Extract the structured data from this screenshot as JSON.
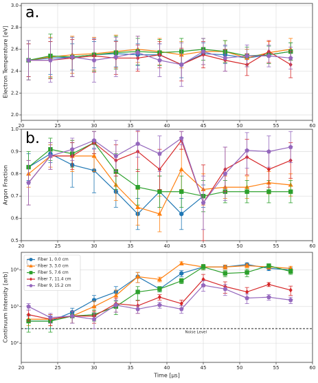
{
  "chart_data": [
    {
      "type": "line",
      "annotation": "a.",
      "ylabel": "Electron Temperature [eV]",
      "xlim": [
        20,
        60
      ],
      "xticks": [
        20,
        25,
        30,
        35,
        40,
        45,
        50,
        55,
        60
      ],
      "ylim": [
        1.95,
        3.02
      ],
      "yticks": [
        {
          "value": 2,
          "label": "2.0"
        },
        2.2,
        2.4,
        2.6,
        2.8,
        {
          "value": 3,
          "label": "3.0"
        }
      ],
      "grid": true,
      "log": false,
      "x": [
        21,
        24,
        27,
        30,
        33,
        36,
        39,
        42,
        45,
        48,
        51,
        54,
        57
      ],
      "series": [
        {
          "color": "#1f77b4",
          "marker": "circle",
          "values": [
            2.5,
            2.52,
            2.53,
            2.55,
            2.56,
            2.55,
            2.55,
            2.46,
            2.56,
            2.55,
            2.52,
            2.55,
            2.58
          ],
          "errors": [
            0.15,
            0.15,
            0.12,
            0.12,
            0.12,
            0.1,
            0.1,
            0.12,
            0.1,
            0.08,
            0.08,
            0.08,
            0.08
          ]
        },
        {
          "color": "#ff7f0e",
          "marker": "triangle",
          "values": [
            2.5,
            2.53,
            2.55,
            2.56,
            2.58,
            2.6,
            2.58,
            2.55,
            2.58,
            2.58,
            2.52,
            2.57,
            2.6
          ],
          "errors": [
            0.18,
            0.18,
            0.17,
            0.15,
            0.15,
            0.12,
            0.12,
            0.12,
            0.12,
            0.1,
            0.08,
            0.1,
            0.1
          ]
        },
        {
          "color": "#2ca02c",
          "marker": "square",
          "values": [
            2.5,
            2.54,
            2.53,
            2.55,
            2.57,
            2.58,
            2.57,
            2.58,
            2.6,
            2.58,
            2.54,
            2.55,
            2.58
          ],
          "errors": [
            0.18,
            0.2,
            0.18,
            0.15,
            0.15,
            0.12,
            0.12,
            0.12,
            0.1,
            0.1,
            0.08,
            0.08,
            0.08
          ]
        },
        {
          "color": "#d62728",
          "marker": "diamond",
          "values": [
            2.5,
            2.5,
            2.52,
            2.54,
            2.52,
            2.52,
            2.55,
            2.46,
            2.55,
            2.5,
            2.46,
            2.58,
            2.46
          ],
          "errors": [
            0.15,
            0.17,
            0.17,
            0.15,
            0.15,
            0.12,
            0.12,
            0.15,
            0.12,
            0.1,
            0.1,
            0.1,
            0.12
          ]
        },
        {
          "color": "#9467bd",
          "marker": "pentagon",
          "values": [
            2.5,
            2.5,
            2.53,
            2.5,
            2.53,
            2.57,
            2.5,
            2.46,
            2.58,
            2.52,
            2.54,
            2.54,
            2.52
          ],
          "errors": [
            0.18,
            0.2,
            0.18,
            0.2,
            0.18,
            0.15,
            0.15,
            0.2,
            0.12,
            0.12,
            0.1,
            0.1,
            0.1
          ]
        }
      ]
    },
    {
      "type": "line",
      "annotation": "b.",
      "ylabel": "Argon Fraction",
      "xlim": [
        20,
        60
      ],
      "xticks": [
        20,
        25,
        30,
        35,
        40,
        45,
        50,
        55,
        60
      ],
      "ylim": [
        0.5,
        1
      ],
      "yticks": [
        0.5,
        0.6,
        0.7,
        0.8,
        0.9,
        {
          "value": 1,
          "label": "1.0"
        }
      ],
      "grid": true,
      "log": false,
      "x": [
        21,
        24,
        27,
        30,
        33,
        36,
        39,
        42,
        45,
        48,
        51,
        54,
        57
      ],
      "series": [
        {
          "color": "#1f77b4",
          "marker": "circle",
          "values": [
            0.83,
            0.89,
            0.84,
            0.815,
            0.72,
            0.62,
            0.72,
            0.62,
            0.7,
            null,
            null,
            null,
            null
          ],
          "errors": [
            0.06,
            0.04,
            0.1,
            0.1,
            0.07,
            0.07,
            0.07,
            0.07,
            0.05,
            null,
            null,
            null,
            null
          ]
        },
        {
          "color": "#ff7f0e",
          "marker": "triangle",
          "values": [
            0.8,
            0.88,
            0.88,
            0.88,
            0.75,
            0.65,
            0.62,
            0.82,
            0.73,
            0.74,
            0.74,
            0.76,
            0.75
          ],
          "errors": [
            0.06,
            0.05,
            0.07,
            0.07,
            0.07,
            0.08,
            0.08,
            0.09,
            0.07,
            0.05,
            0.05,
            0.05,
            0.05
          ]
        },
        {
          "color": "#2ca02c",
          "marker": "square",
          "values": [
            0.83,
            0.91,
            0.89,
            0.94,
            0.81,
            0.74,
            0.72,
            0.72,
            0.7,
            0.72,
            0.72,
            0.72,
            0.72
          ],
          "errors": [
            0.07,
            0.05,
            0.06,
            0.05,
            0.08,
            0.08,
            0.07,
            0.07,
            0.07,
            0.05,
            0.05,
            0.05,
            0.05
          ]
        },
        {
          "color": "#d62728",
          "marker": "diamond",
          "values": [
            0.76,
            0.88,
            0.88,
            0.94,
            0.86,
            0.9,
            0.82,
            0.95,
            0.67,
            0.82,
            0.875,
            0.82,
            0.86
          ],
          "errors": [
            0.1,
            0.06,
            0.06,
            0.05,
            0.07,
            0.09,
            0.09,
            0.04,
            0.17,
            0.1,
            0.08,
            0.08,
            0.08
          ]
        },
        {
          "color": "#9467bd",
          "marker": "pentagon",
          "values": [
            0.76,
            0.88,
            0.91,
            0.95,
            0.88,
            0.935,
            0.89,
            0.96,
            0.67,
            0.8,
            0.905,
            0.9,
            0.92
          ],
          "errors": [
            0.1,
            0.06,
            0.05,
            0.04,
            0.07,
            0.06,
            0.08,
            0.03,
            0.12,
            0.12,
            0.08,
            0.07,
            0.07
          ]
        }
      ]
    },
    {
      "type": "line",
      "annotation": "c.",
      "ylabel": "Continuum Intensity [arb]",
      "xlabel": "Time [μs]",
      "xlim": [
        20,
        60
      ],
      "xticks": [
        20,
        25,
        30,
        35,
        40,
        45,
        50,
        55,
        60
      ],
      "ylim": [
        30,
        30000
      ],
      "yticks": [
        {
          "value": 100,
          "label": "10²"
        },
        {
          "value": 1000,
          "label": "10³"
        },
        {
          "value": 10000,
          "label": "10⁴"
        }
      ],
      "grid": true,
      "log": true,
      "legend": "upper left",
      "hline": {
        "value": 250,
        "label": "Noise Level"
      },
      "x": [
        21,
        24,
        27,
        30,
        33,
        36,
        39,
        42,
        45,
        48,
        51,
        54,
        57
      ],
      "series": [
        {
          "name": "Fiber 1, 0.0 cm",
          "color": "#1f77b4",
          "marker": "circle",
          "values": [
            400,
            400,
            700,
            1500,
            2500,
            6500,
            3000,
            8000,
            12000,
            12000,
            14000,
            11000,
            10000
          ],
          "errors": [
            150,
            150,
            200,
            500,
            1000,
            2000,
            500,
            1500,
            2000,
            1500,
            1500,
            1500,
            1500
          ]
        },
        {
          "name": "Fiber 3, 3.0 cm",
          "color": "#ff7f0e",
          "marker": "triangle",
          "values": [
            450,
            450,
            550,
            1000,
            2000,
            6500,
            5500,
            15000,
            12000,
            12000,
            13000,
            12000,
            11000
          ],
          "errors": [
            150,
            150,
            200,
            400,
            800,
            2000,
            800,
            1500,
            2000,
            1500,
            1500,
            1500,
            1500
          ]
        },
        {
          "name": "Fiber 5, 7.6 cm",
          "color": "#2ca02c",
          "marker": "square",
          "values": [
            400,
            400,
            550,
            600,
            1000,
            2500,
            3000,
            5000,
            12000,
            8000,
            8500,
            13000,
            9000
          ],
          "errors": [
            200,
            200,
            200,
            200,
            400,
            1000,
            500,
            800,
            2000,
            1500,
            2000,
            1500,
            1500
          ]
        },
        {
          "name": "Fiber 7, 11.4 cm",
          "color": "#d62728",
          "marker": "diamond",
          "values": [
            600,
            450,
            550,
            550,
            1200,
            1050,
            1800,
            1200,
            5500,
            3500,
            2500,
            4000,
            2800
          ],
          "errors": [
            200,
            150,
            200,
            200,
            500,
            400,
            300,
            300,
            2000,
            1200,
            800,
            500,
            800
          ]
        },
        {
          "name": "Fiber 9, 15.2 cm",
          "color": "#9467bd",
          "marker": "pentagon",
          "values": [
            1000,
            500,
            550,
            450,
            1100,
            850,
            1100,
            850,
            3800,
            3000,
            1700,
            1800,
            1500
          ],
          "errors": [
            200,
            150,
            200,
            200,
            400,
            200,
            200,
            200,
            1200,
            1000,
            500,
            300,
            300
          ]
        }
      ]
    }
  ]
}
